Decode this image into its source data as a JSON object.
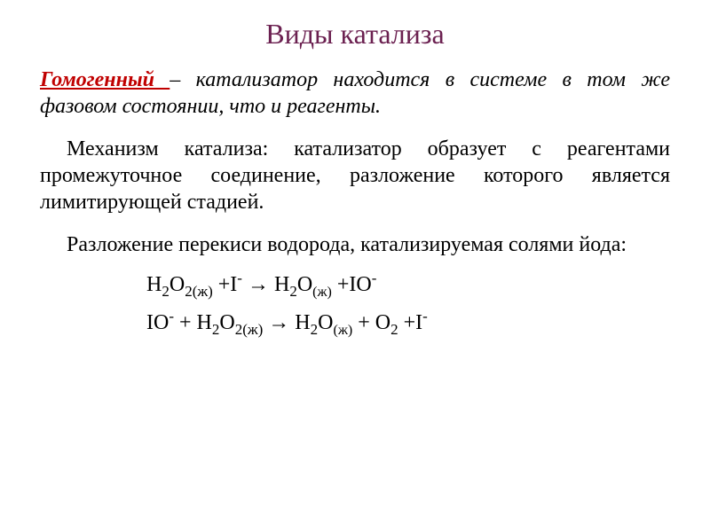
{
  "title": "Виды катализа",
  "definition": {
    "term": "Гомогенный ",
    "rest": "– катализатор находится в системе в том же фазовом состоянии, что и реагенты."
  },
  "mechanism": "Механизм катализа: катализатор образует с реагентами промежуточное соединение, разложение которого является лимитирующей стадией.",
  "example_intro": "Разложение перекиси водорода, катализируемая солями йода:",
  "colors": {
    "title": "#6b2050",
    "term": "#c00000",
    "body": "#000000",
    "background": "#ffffff"
  },
  "typography": {
    "title_fontsize": 32,
    "body_fontsize": 24,
    "font_family": "Times New Roman",
    "body_italic_definition": true
  }
}
